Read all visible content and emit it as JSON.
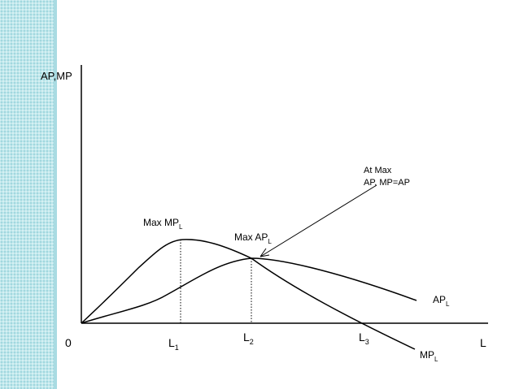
{
  "chart_data": {
    "type": "line",
    "ylabel": "AP,MP",
    "xlabel": "L",
    "origin_label": "0",
    "x_ticks": [
      {
        "main": "L",
        "sub": "1"
      },
      {
        "main": "L",
        "sub": "2"
      },
      {
        "main": "L",
        "sub": "3"
      }
    ],
    "series": [
      {
        "name": "AP",
        "sub": "L",
        "color": "#000000"
      },
      {
        "name": "MP",
        "sub": "L",
        "color": "#000000"
      }
    ],
    "annotations": {
      "max_mp": {
        "main": "Max MP",
        "sub": "L"
      },
      "max_ap": {
        "main": "Max AP",
        "sub": "L"
      },
      "note_line1": "At Max",
      "note_line2": "AP, MP=AP"
    }
  }
}
